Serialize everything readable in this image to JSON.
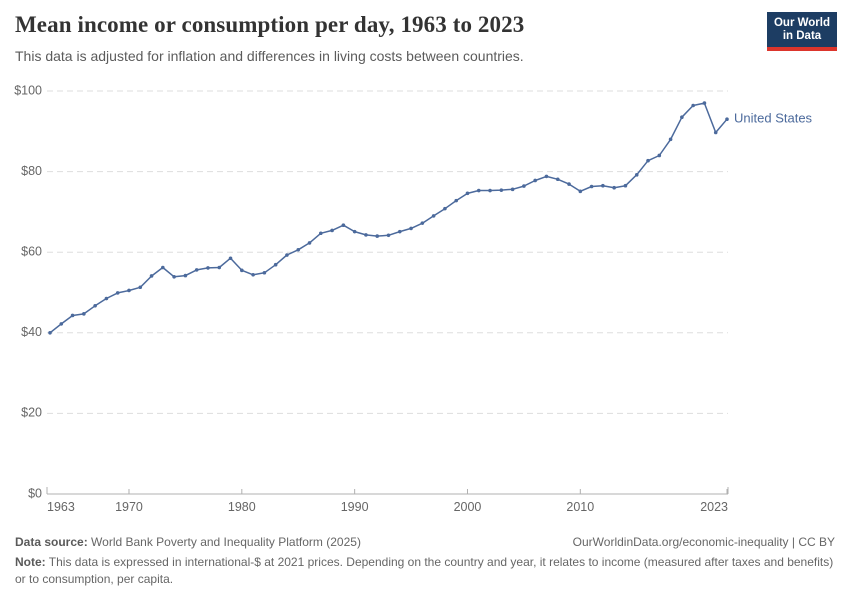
{
  "header": {
    "title": "Mean income or consumption per day, 1963 to 2023",
    "subtitle": "This data is adjusted for inflation and differences in living costs between countries."
  },
  "logo": {
    "line1": "Our World",
    "line2": "in Data",
    "bg_color": "#1d3d63",
    "bar_color": "#dc352c"
  },
  "chart_data": {
    "type": "line",
    "title": "Mean income or consumption per day, 1963 to 2023",
    "xlabel": "",
    "ylabel": "",
    "ylim": [
      0,
      100
    ],
    "xlim": [
      1963,
      2023
    ],
    "grid": "horizontal-dashed",
    "legend_position": "end-of-line-label",
    "yticks": [
      {
        "value": 0,
        "label": "$0"
      },
      {
        "value": 20,
        "label": "$20"
      },
      {
        "value": 40,
        "label": "$40"
      },
      {
        "value": 60,
        "label": "$60"
      },
      {
        "value": 80,
        "label": "$80"
      },
      {
        "value": 100,
        "label": "$100"
      }
    ],
    "xticks": [
      {
        "year": 1963,
        "label": "1963",
        "anchor": "start",
        "tick": false
      },
      {
        "year": 1970,
        "label": "1970",
        "anchor": "middle",
        "tick": true
      },
      {
        "year": 1980,
        "label": "1980",
        "anchor": "middle",
        "tick": true
      },
      {
        "year": 1990,
        "label": "1990",
        "anchor": "middle",
        "tick": true
      },
      {
        "year": 2000,
        "label": "2000",
        "anchor": "middle",
        "tick": true
      },
      {
        "year": 2010,
        "label": "2010",
        "anchor": "middle",
        "tick": true
      },
      {
        "year": 2023,
        "label": "2023",
        "anchor": "end",
        "tick": true
      }
    ],
    "x": [
      1963,
      1964,
      1965,
      1966,
      1967,
      1968,
      1969,
      1970,
      1971,
      1972,
      1973,
      1974,
      1975,
      1976,
      1977,
      1978,
      1979,
      1980,
      1981,
      1982,
      1983,
      1984,
      1985,
      1986,
      1987,
      1988,
      1989,
      1990,
      1991,
      1992,
      1993,
      1994,
      1995,
      1996,
      1997,
      1998,
      1999,
      2000,
      2001,
      2002,
      2003,
      2004,
      2005,
      2006,
      2007,
      2008,
      2009,
      2010,
      2011,
      2012,
      2013,
      2014,
      2015,
      2016,
      2017,
      2018,
      2019,
      2020,
      2021,
      2022,
      2023
    ],
    "series": [
      {
        "name": "United States",
        "color": "#4C6A9C",
        "values": [
          40.0,
          42.2,
          44.3,
          44.7,
          46.7,
          48.5,
          49.9,
          50.5,
          51.3,
          54.1,
          56.2,
          53.9,
          54.2,
          55.6,
          56.1,
          56.2,
          58.5,
          55.5,
          54.4,
          54.9,
          56.9,
          59.3,
          60.6,
          62.3,
          64.7,
          65.4,
          66.7,
          65.1,
          64.3,
          64.0,
          64.2,
          65.1,
          65.9,
          67.2,
          69.0,
          70.8,
          72.8,
          74.6,
          75.3,
          75.3,
          75.4,
          75.6,
          76.4,
          77.8,
          78.8,
          78.1,
          76.9,
          75.1,
          76.3,
          76.5,
          76.0,
          76.5,
          79.2,
          82.7,
          84.0,
          88.0,
          93.5,
          96.4,
          97.0,
          89.7,
          93.0
        ]
      }
    ],
    "style": {
      "grid_color": "#dddddd",
      "axis_color": "#b0b0b0",
      "tick_label_color": "#666666"
    }
  },
  "footer": {
    "datasource_label": "Data source:",
    "datasource_text": " World Bank Poverty and Inequality Platform (2025)",
    "link_text": "OurWorldinData.org/economic-inequality | CC BY",
    "note_label": "Note:",
    "note_text": " This data is expressed in international-$ at 2021 prices. Depending on the country and year, it relates to income (measured after taxes and benefits) or to consumption, per capita."
  }
}
